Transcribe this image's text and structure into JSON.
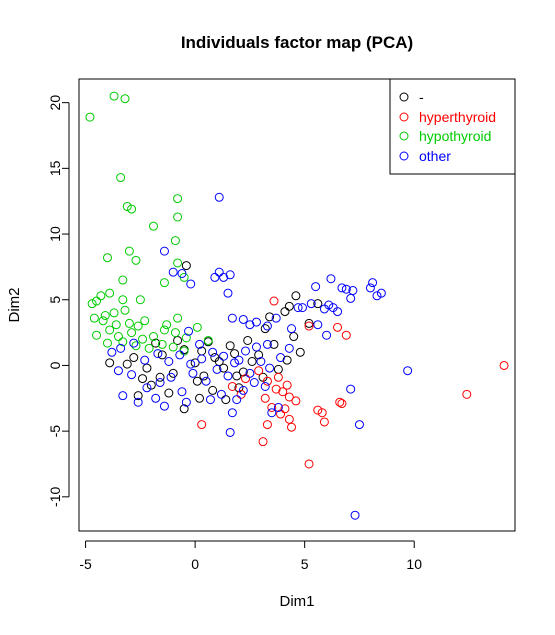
{
  "chart_data": {
    "type": "scatter",
    "title": "Individuals factor map (PCA)",
    "xlabel": "Dim1",
    "ylabel": "Dim2",
    "xlim": [
      -5.3,
      14.6
    ],
    "ylim": [
      -12.6,
      21.8
    ],
    "x_ticks": [
      -5,
      0,
      5,
      10
    ],
    "x_tick_labels": [
      "-5",
      "0",
      "5",
      "10"
    ],
    "y_ticks": [
      -10,
      -5,
      0,
      5,
      10,
      15,
      20
    ],
    "y_tick_labels": [
      "-10",
      "-5",
      "0",
      "5",
      "10",
      "15",
      "20"
    ],
    "grid": false,
    "legend_position": "top-right",
    "marker": "open-circle",
    "series": [
      {
        "name": "-",
        "color": "#000000",
        "points": [
          [
            -0.4,
            7.6
          ],
          [
            3.4,
            3.7
          ],
          [
            4.1,
            4.1
          ],
          [
            4.6,
            5.3
          ],
          [
            5.6,
            4.7
          ],
          [
            4.3,
            4.5
          ],
          [
            3.2,
            2.8
          ],
          [
            5.2,
            3.2
          ],
          [
            -2.8,
            0.6
          ],
          [
            -2.2,
            -0.2
          ],
          [
            -1.5,
            0.8
          ],
          [
            -1.0,
            -0.6
          ],
          [
            -0.5,
            1.2
          ],
          [
            0.0,
            0.2
          ],
          [
            0.4,
            -0.8
          ],
          [
            0.9,
            0.6
          ],
          [
            1.3,
            -0.2
          ],
          [
            1.8,
            0.9
          ],
          [
            2.2,
            -0.5
          ],
          [
            2.6,
            0.3
          ],
          [
            3.1,
            -0.9
          ],
          [
            3.6,
            1.6
          ],
          [
            4.2,
            0.4
          ],
          [
            4.5,
            2.2
          ],
          [
            -2.6,
            -2.3
          ],
          [
            -2.0,
            -1.5
          ],
          [
            -1.2,
            -2.1
          ],
          [
            -0.5,
            -3.3
          ],
          [
            0.2,
            -2.5
          ],
          [
            0.8,
            -1.9
          ],
          [
            1.4,
            -2.6
          ],
          [
            2.0,
            -1.7
          ],
          [
            -1.8,
            1.7
          ],
          [
            -0.8,
            1.9
          ],
          [
            0.6,
            1.8
          ],
          [
            1.6,
            1.5
          ],
          [
            2.4,
            1.9
          ],
          [
            -3.1,
            0.1
          ],
          [
            -1.6,
            -0.9
          ],
          [
            0.1,
            -1.2
          ],
          [
            1.1,
            0.3
          ],
          [
            2.9,
            0.8
          ],
          [
            3.8,
            -0.3
          ],
          [
            4.8,
            1.0
          ],
          [
            -3.9,
            0.2
          ],
          [
            -2.4,
            -1.0
          ],
          [
            0.3,
            1.1
          ],
          [
            1.9,
            -0.8
          ]
        ]
      },
      {
        "name": "hyperthyroid",
        "color": "#ff0000",
        "points": [
          [
            14.1,
            0.0
          ],
          [
            12.4,
            -2.2
          ],
          [
            3.6,
            4.9
          ],
          [
            5.2,
            3.0
          ],
          [
            6.5,
            2.9
          ],
          [
            6.9,
            2.3
          ],
          [
            5.2,
            -7.5
          ],
          [
            0.3,
            -4.5
          ],
          [
            3.1,
            -5.8
          ],
          [
            3.3,
            -4.5
          ],
          [
            4.4,
            -4.7
          ],
          [
            4.3,
            -4.1
          ],
          [
            5.6,
            -3.4
          ],
          [
            5.8,
            -3.6
          ],
          [
            5.9,
            -4.3
          ],
          [
            6.6,
            -2.8
          ],
          [
            6.7,
            -2.9
          ],
          [
            3.5,
            -3.2
          ],
          [
            3.9,
            -3.7
          ],
          [
            4.1,
            -3.3
          ],
          [
            4.6,
            -2.7
          ],
          [
            4.2,
            -1.5
          ],
          [
            3.7,
            -1.8
          ],
          [
            4.3,
            -2.4
          ],
          [
            2.3,
            -1.0
          ],
          [
            2.9,
            -0.4
          ],
          [
            3.3,
            -1.2
          ],
          [
            1.7,
            -1.6
          ],
          [
            2.1,
            -2.2
          ],
          [
            3.8,
            -0.9
          ],
          [
            4.0,
            -2.0
          ],
          [
            3.2,
            -2.5
          ]
        ]
      },
      {
        "name": "hypothyroid",
        "color": "#00cc00",
        "points": [
          [
            -4.8,
            18.9
          ],
          [
            -3.7,
            20.5
          ],
          [
            -3.2,
            20.3
          ],
          [
            -3.4,
            14.3
          ],
          [
            -3.1,
            12.1
          ],
          [
            -2.9,
            11.9
          ],
          [
            -0.8,
            12.7
          ],
          [
            -0.8,
            11.3
          ],
          [
            -1.9,
            10.6
          ],
          [
            -3.0,
            8.7
          ],
          [
            -2.7,
            8.0
          ],
          [
            -0.9,
            9.5
          ],
          [
            -4.0,
            8.2
          ],
          [
            -0.5,
            6.7
          ],
          [
            -0.8,
            7.8
          ],
          [
            -3.3,
            6.5
          ],
          [
            -1.4,
            6.3
          ],
          [
            -2.5,
            5.0
          ],
          [
            -3.9,
            5.5
          ],
          [
            -4.7,
            4.7
          ],
          [
            -4.3,
            5.3
          ],
          [
            -3.3,
            5.0
          ],
          [
            -4.5,
            4.9
          ],
          [
            -4.1,
            3.8
          ],
          [
            -3.7,
            4.0
          ],
          [
            -3.2,
            4.2
          ],
          [
            -4.6,
            3.6
          ],
          [
            -4.2,
            3.4
          ],
          [
            -3.6,
            3.1
          ],
          [
            -3.0,
            3.2
          ],
          [
            -2.6,
            3.0
          ],
          [
            -3.9,
            2.7
          ],
          [
            -4.5,
            2.3
          ],
          [
            -3.5,
            2.2
          ],
          [
            -2.9,
            2.5
          ],
          [
            -2.4,
            2.0
          ],
          [
            -1.9,
            2.2
          ],
          [
            -1.4,
            2.7
          ],
          [
            -0.9,
            2.5
          ],
          [
            -0.4,
            2.1
          ],
          [
            -4.0,
            1.7
          ],
          [
            -3.3,
            1.8
          ],
          [
            -2.7,
            1.5
          ],
          [
            -2.1,
            1.3
          ],
          [
            -1.5,
            1.6
          ],
          [
            -1.0,
            1.4
          ],
          [
            -0.5,
            1.1
          ],
          [
            -0.8,
            3.6
          ],
          [
            -1.3,
            3.1
          ],
          [
            -2.3,
            3.4
          ],
          [
            0.1,
            2.9
          ],
          [
            0.6,
            1.9
          ]
        ]
      },
      {
        "name": "other",
        "color": "#0000ff",
        "points": [
          [
            1.1,
            12.8
          ],
          [
            -1.4,
            8.7
          ],
          [
            -1.0,
            7.1
          ],
          [
            -0.6,
            7.0
          ],
          [
            0.9,
            6.7
          ],
          [
            1.1,
            7.1
          ],
          [
            1.3,
            6.7
          ],
          [
            1.6,
            6.9
          ],
          [
            1.5,
            5.5
          ],
          [
            -0.2,
            6.2
          ],
          [
            1.7,
            3.6
          ],
          [
            2.2,
            3.5
          ],
          [
            2.5,
            3.1
          ],
          [
            2.8,
            3.3
          ],
          [
            3.3,
            3.0
          ],
          [
            3.7,
            3.6
          ],
          [
            4.4,
            2.8
          ],
          [
            4.7,
            4.4
          ],
          [
            4.9,
            4.4
          ],
          [
            5.3,
            4.7
          ],
          [
            5.5,
            6.0
          ],
          [
            5.9,
            4.3
          ],
          [
            6.1,
            4.6
          ],
          [
            6.3,
            4.4
          ],
          [
            6.5,
            4.1
          ],
          [
            6.2,
            6.6
          ],
          [
            6.7,
            5.9
          ],
          [
            6.9,
            5.8
          ],
          [
            7.1,
            5.1
          ],
          [
            7.2,
            5.7
          ],
          [
            8.0,
            5.9
          ],
          [
            8.1,
            6.3
          ],
          [
            8.3,
            5.3
          ],
          [
            8.5,
            5.5
          ],
          [
            5.6,
            3.1
          ],
          [
            6.0,
            2.3
          ],
          [
            9.7,
            -0.4
          ],
          [
            7.3,
            -11.4
          ],
          [
            7.5,
            -4.5
          ],
          [
            7.1,
            -1.8
          ],
          [
            3.5,
            -3.6
          ],
          [
            3.8,
            -3.2
          ],
          [
            1.6,
            -5.1
          ],
          [
            1.7,
            -3.6
          ],
          [
            1.9,
            -2.6
          ],
          [
            -1.8,
            -2.5
          ],
          [
            -3.3,
            -2.3
          ],
          [
            -2.6,
            -2.8
          ],
          [
            -2.2,
            -1.7
          ],
          [
            -1.6,
            -1.3
          ],
          [
            -1.1,
            -0.9
          ],
          [
            -0.6,
            -2.0
          ],
          [
            -0.1,
            -0.6
          ],
          [
            0.5,
            -1.2
          ],
          [
            1.0,
            -0.3
          ],
          [
            1.5,
            -0.8
          ],
          [
            2.0,
            0.4
          ],
          [
            2.5,
            -0.6
          ],
          [
            3.0,
            0.3
          ],
          [
            3.4,
            -0.2
          ],
          [
            3.9,
            0.6
          ],
          [
            4.3,
            1.3
          ],
          [
            -2.9,
            -0.7
          ],
          [
            -3.5,
            -0.4
          ],
          [
            -2.3,
            0.4
          ],
          [
            -1.7,
            0.9
          ],
          [
            -1.2,
            0.3
          ],
          [
            -0.7,
            0.8
          ],
          [
            -0.2,
            0.1
          ],
          [
            0.3,
            0.5
          ],
          [
            0.8,
            1.0
          ],
          [
            1.3,
            0.7
          ],
          [
            1.8,
            0.2
          ],
          [
            2.3,
            1.1
          ],
          [
            2.8,
            1.4
          ],
          [
            3.3,
            1.6
          ],
          [
            -3.8,
            1.0
          ],
          [
            -3.4,
            1.3
          ],
          [
            -2.8,
            1.7
          ],
          [
            -0.3,
            2.6
          ],
          [
            0.2,
            1.6
          ],
          [
            0.7,
            -2.6
          ],
          [
            1.2,
            -2.2
          ],
          [
            2.2,
            -1.9
          ],
          [
            2.7,
            -1.3
          ],
          [
            3.2,
            -1.6
          ],
          [
            -1.4,
            -3.1
          ],
          [
            -0.4,
            -2.8
          ]
        ]
      }
    ]
  }
}
